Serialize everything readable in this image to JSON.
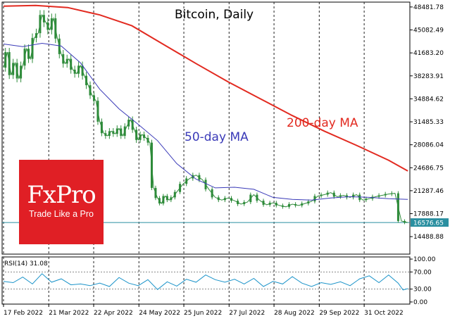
{
  "chart_data": [
    {
      "type": "line",
      "title": "Bitcoin, Daily",
      "x_labels": [
        "17 Feb 2022",
        "21 Mar 2022",
        "22 Apr 2022",
        "24 May 2022",
        "25 Jun 2022",
        "27 Jul 2022",
        "28 Aug 2022",
        "29 Sep 2022",
        "31 Oct 2022"
      ],
      "y_ticks": [
        48481.78,
        45082.49,
        41683.2,
        38283.91,
        34884.62,
        31485.33,
        28086.04,
        24686.75,
        21287.46,
        17888.17,
        14488.88
      ],
      "y_tick_labels": [
        "48481.78",
        "45082.49",
        "41683.20",
        "38283.91",
        "34884.62",
        "31485.33",
        "28086.04",
        "24686.75",
        "21287.46",
        "17888.17",
        "14488.88"
      ],
      "ylim": [
        11900,
        49200
      ],
      "grid": true,
      "last_price": 16576.65,
      "last_price_label": "16576.65",
      "series": [
        {
          "name": "Bitcoin",
          "kind": "candlestick",
          "color": "#2e8b3a",
          "x": [
            0,
            12,
            24,
            36,
            48,
            60,
            72,
            84,
            96,
            108,
            120,
            132,
            144,
            156,
            168,
            180,
            192,
            204,
            216,
            228,
            240,
            252,
            264,
            276,
            288,
            300,
            312,
            324,
            336,
            348,
            360,
            372,
            384,
            396,
            408,
            420,
            432,
            444,
            456,
            468,
            480,
            492,
            504,
            516,
            528,
            540,
            560,
            580,
            600,
            620,
            640,
            660,
            680,
            700,
            720,
            740,
            760,
            780,
            800,
            820,
            840,
            860,
            880,
            900,
            920,
            940,
            960,
            980,
            1000,
            1020,
            1040,
            1060,
            1080,
            1100,
            1120,
            1140,
            1160,
            1180,
            1200,
            1220,
            1240,
            1260
          ],
          "values": [
            39500,
            41800,
            38400,
            40200,
            37900,
            39800,
            42300,
            40800,
            43900,
            44600,
            47300,
            46200,
            45100,
            46800,
            43800,
            41500,
            40100,
            40800,
            39200,
            38600,
            39800,
            38300,
            36900,
            35400,
            34600,
            31500,
            29800,
            29400,
            30100,
            29700,
            30500,
            29400,
            30800,
            31800,
            30300,
            28800,
            29600,
            29100,
            28400,
            21700,
            20200,
            19400,
            20500,
            19900,
            20300,
            21100,
            22300,
            23100,
            23600,
            22900,
            21500,
            20300,
            19900,
            20200,
            19800,
            19300,
            19600,
            20700,
            19800,
            19200,
            19500,
            19100,
            18900,
            19300,
            19100,
            19400,
            19700,
            20500,
            20700,
            21000,
            20400,
            20600,
            20300,
            20700,
            19900,
            20100,
            20400,
            20600,
            20800,
            20900,
            16800,
            16576.65
          ]
        },
        {
          "name": "50-day MA",
          "color": "#3a3ab8",
          "x": [
            0,
            60,
            120,
            180,
            240,
            300,
            360,
            420,
            480,
            540,
            600,
            660,
            720,
            780,
            840,
            900,
            960,
            1020,
            1080,
            1140,
            1200,
            1260
          ],
          "values": [
            43000,
            42600,
            43100,
            42700,
            40200,
            36300,
            33400,
            31100,
            28700,
            25300,
            23000,
            21700,
            21800,
            21500,
            20300,
            20000,
            19900,
            20200,
            20400,
            20300,
            20100,
            20000
          ]
        },
        {
          "name": "200-day MA",
          "color": "#e22a20",
          "x": [
            0,
            100,
            200,
            300,
            400,
            500,
            600,
            700,
            800,
            900,
            1000,
            1100,
            1200,
            1260
          ],
          "values": [
            48600,
            48700,
            48400,
            47300,
            45700,
            42900,
            40100,
            37400,
            34900,
            32400,
            30100,
            28000,
            25800,
            24200
          ]
        }
      ],
      "annotations": [
        "50-day MA",
        "200-day MA"
      ]
    },
    {
      "type": "line",
      "title": "RSI(14) 31.08",
      "y_ticks": [
        100,
        70,
        30,
        0
      ],
      "y_tick_labels": [
        "100.00",
        "70.00",
        "30.00",
        "0.00"
      ],
      "ylim": [
        -5,
        105
      ],
      "reference_lines": [
        70,
        30
      ],
      "series": [
        {
          "name": "RSI(14)",
          "color": "#1a93c9",
          "x": [
            0,
            30,
            60,
            90,
            120,
            150,
            180,
            210,
            240,
            270,
            300,
            330,
            360,
            390,
            420,
            450,
            480,
            510,
            540,
            570,
            600,
            630,
            660,
            690,
            720,
            750,
            780,
            810,
            840,
            870,
            900,
            930,
            960,
            990,
            1020,
            1050,
            1080,
            1110,
            1140,
            1170,
            1200,
            1230,
            1245,
            1260
          ],
          "values": [
            48,
            45,
            58,
            42,
            66,
            46,
            54,
            40,
            42,
            38,
            44,
            36,
            57,
            44,
            38,
            52,
            29,
            47,
            37,
            53,
            46,
            63,
            52,
            46,
            53,
            42,
            55,
            36,
            48,
            42,
            59,
            44,
            36,
            45,
            41,
            47,
            38,
            54,
            61,
            45,
            63,
            44,
            28,
            31.08
          ]
        }
      ]
    }
  ],
  "logo": {
    "name": "FxPro",
    "tagline": "Trade Like a Pro"
  }
}
